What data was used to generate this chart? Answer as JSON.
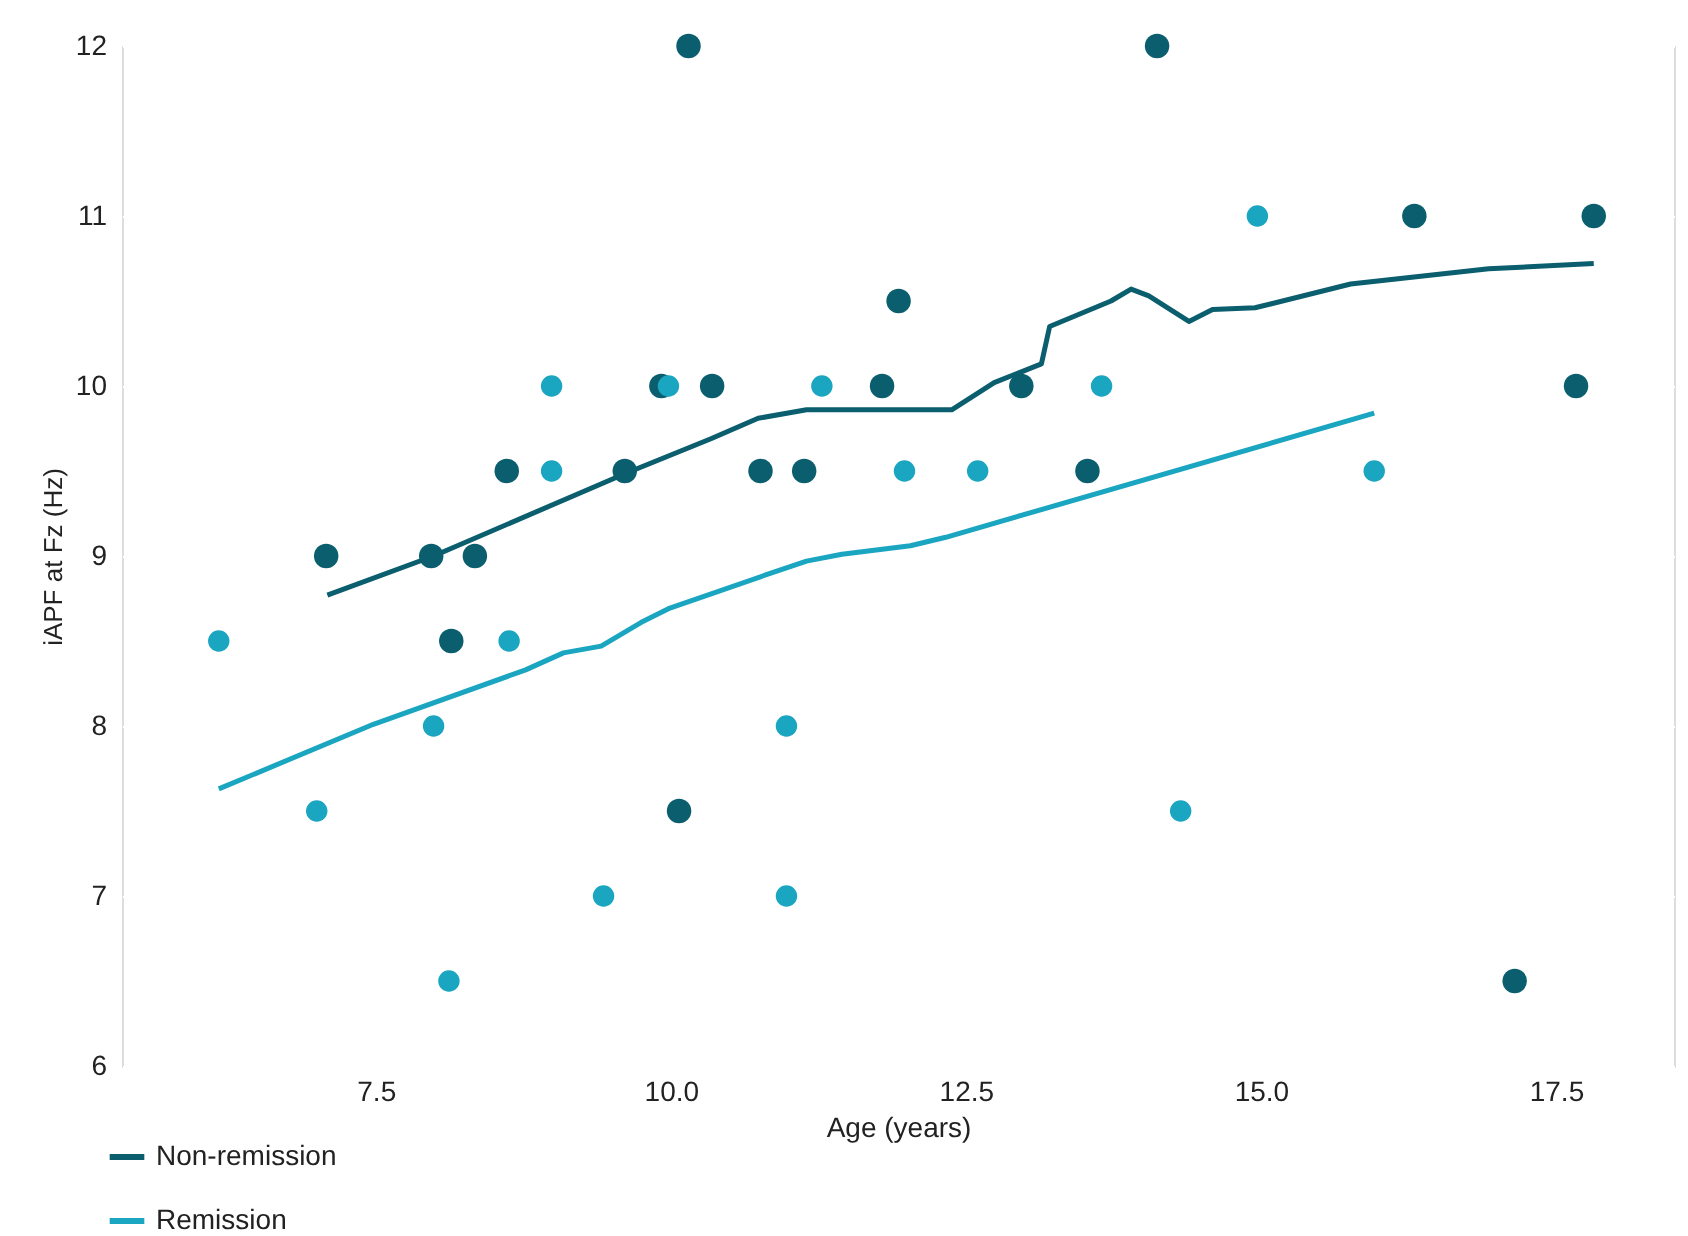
{
  "chart_data": {
    "type": "scatter",
    "xlabel": "Age (years)",
    "ylabel": "iAPF at Fz (Hz)",
    "xlim": [
      5.35,
      18.5
    ],
    "ylim": [
      6,
      12
    ],
    "xticks": [
      7.5,
      {
        "value": 10,
        "label": "10.0"
      },
      12.5,
      {
        "value": 15,
        "label": "15.0"
      },
      17.5
    ],
    "yticks": [
      6,
      7,
      8,
      9,
      10,
      11,
      12
    ],
    "grid": true,
    "legend": "bottom left",
    "series": [
      {
        "name": "Non-remission",
        "type": "line",
        "marker": "none",
        "color": "#0b5e6e",
        "x": [
          7.09,
          7.99,
          9.63,
          10.34,
          10.74,
          11.15,
          11.69,
          12.38,
          12.74,
          13.14,
          13.21,
          13.73,
          13.9,
          14.05,
          14.39,
          14.59,
          14.95,
          15.76,
          16.93,
          17.82
        ],
        "values": [
          8.77,
          9.0,
          9.49,
          9.69,
          9.81,
          9.86,
          9.86,
          9.86,
          10.02,
          10.13,
          10.35,
          10.5,
          10.57,
          10.53,
          10.38,
          10.45,
          10.46,
          10.6,
          10.69,
          10.72
        ]
      },
      {
        "name": "Remission",
        "type": "line",
        "marker": "none",
        "color": "#1aa5c0",
        "x": [
          6.17,
          7.48,
          8.77,
          9.09,
          9.41,
          9.75,
          9.98,
          10.81,
          11.15,
          11.45,
          12.03,
          12.33,
          15.96
        ],
        "values": [
          7.63,
          8.01,
          8.33,
          8.43,
          8.47,
          8.61,
          8.69,
          8.89,
          8.97,
          9.01,
          9.06,
          9.11,
          9.84
        ]
      },
      {
        "type": "scatter",
        "marker": "circle",
        "color": "#0b5e6e",
        "x": [
          7.08,
          7.97,
          8.34,
          8.14,
          8.61,
          9.61,
          9.92,
          10.15,
          10.07,
          10.35,
          10.76,
          11.13,
          11.79,
          11.93,
          12.97,
          13.53,
          14.12,
          16.3,
          17.67,
          17.82,
          17.15
        ],
        "values": [
          9,
          9,
          9,
          8.5,
          9.5,
          9.5,
          10,
          12,
          7.5,
          10,
          9.5,
          9.5,
          10,
          10.5,
          10,
          9.5,
          12,
          11,
          10,
          11,
          6.5
        ]
      },
      {
        "type": "scatter",
        "marker": "circle",
        "color": "#1aa5c0",
        "x": [
          6.17,
          7.0,
          7.99,
          8.12,
          8.63,
          8.99,
          8.99,
          9.43,
          9.98,
          10.98,
          10.98,
          11.28,
          11.98,
          12.6,
          13.65,
          14.32,
          14.97,
          15.96
        ],
        "values": [
          8.5,
          7.5,
          8,
          6.5,
          8.5,
          10,
          9.5,
          7,
          10,
          8,
          7,
          10,
          9.5,
          9.5,
          10,
          7.5,
          11,
          9.5
        ]
      }
    ]
  }
}
